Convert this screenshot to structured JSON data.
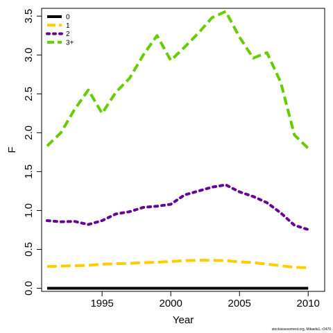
{
  "chart_data": {
    "type": "line",
    "xlabel": "Year",
    "ylabel": "F",
    "xlim": [
      1990.6,
      2011.2
    ],
    "ylim": [
      -0.04,
      3.6
    ],
    "xticks": [
      1995,
      2000,
      2005,
      2010
    ],
    "yticks": [
      "0.0",
      "0.5",
      "1.0",
      "1.5",
      "2.0",
      "2.5",
      "3.0",
      "3.5"
    ],
    "legend_position": "top-left",
    "grid": false,
    "x": [
      1991,
      1992,
      1993,
      1994,
      1995,
      1996,
      1997,
      1998,
      1999,
      2000,
      2001,
      2002,
      2003,
      2004,
      2005,
      2006,
      2007,
      2008,
      2009,
      2010
    ],
    "series": [
      {
        "name": "0",
        "color": "#000000",
        "dash": "solid",
        "values": [
          0.0,
          0.0,
          0.0,
          0.0,
          0.0,
          0.0,
          0.0,
          0.0,
          0.0,
          0.0,
          0.0,
          0.0,
          0.0,
          0.0,
          0.0,
          0.0,
          0.0,
          0.0,
          0.0,
          0.0
        ]
      },
      {
        "name": "1",
        "color": "#FFCC00",
        "dash": "dashed",
        "values": [
          0.28,
          0.285,
          0.29,
          0.295,
          0.31,
          0.315,
          0.32,
          0.33,
          0.335,
          0.345,
          0.355,
          0.36,
          0.36,
          0.355,
          0.34,
          0.33,
          0.31,
          0.29,
          0.27,
          0.265
        ]
      },
      {
        "name": "2",
        "color": "#660099",
        "dash": "dotted",
        "values": [
          0.87,
          0.855,
          0.86,
          0.82,
          0.87,
          0.955,
          0.985,
          1.04,
          1.055,
          1.08,
          1.2,
          1.25,
          1.3,
          1.33,
          1.24,
          1.18,
          1.1,
          0.97,
          0.81,
          0.755
        ]
      },
      {
        "name": "3+",
        "color": "#66CC00",
        "dash": "longdash",
        "values": [
          1.83,
          2.0,
          2.3,
          2.55,
          2.25,
          2.52,
          2.7,
          3.0,
          3.25,
          2.93,
          3.1,
          3.28,
          3.48,
          3.56,
          3.23,
          2.96,
          3.03,
          2.65,
          1.97,
          1.8
        ]
      }
    ]
  },
  "footnote": "stockassessment.org, Mikaela1, r2470"
}
